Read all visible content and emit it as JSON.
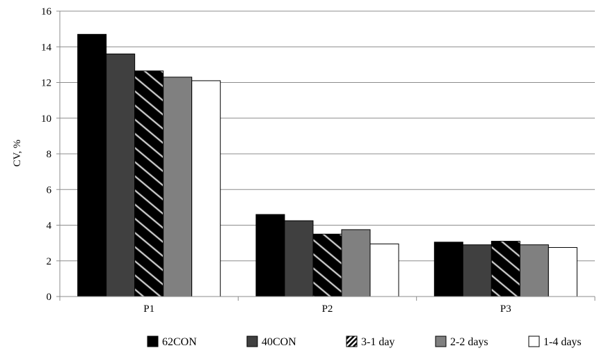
{
  "chart_data": {
    "type": "bar",
    "title": "",
    "xlabel": "",
    "ylabel": "CV, %",
    "ylim": [
      0,
      16
    ],
    "yticks": [
      0,
      2,
      4,
      6,
      8,
      10,
      12,
      14,
      16
    ],
    "grid": true,
    "legend_position": "bottom",
    "categories": [
      "P1",
      "P2",
      "P3"
    ],
    "series": [
      {
        "name": "62CON",
        "values": [
          14.7,
          4.6,
          3.05
        ],
        "fill": "#000000",
        "pattern": "solid"
      },
      {
        "name": "40CON",
        "values": [
          13.6,
          4.25,
          2.9
        ],
        "fill": "#404040",
        "pattern": "solid"
      },
      {
        "name": "3-1 day",
        "values": [
          12.65,
          3.5,
          3.1
        ],
        "fill": "#000000",
        "pattern": "diagonal-stripes"
      },
      {
        "name": "2-2 days",
        "values": [
          12.3,
          3.75,
          2.9
        ],
        "fill": "#808080",
        "pattern": "solid"
      },
      {
        "name": "1-4 days",
        "values": [
          12.1,
          2.95,
          2.75
        ],
        "fill": "#ffffff",
        "pattern": "solid"
      }
    ]
  }
}
